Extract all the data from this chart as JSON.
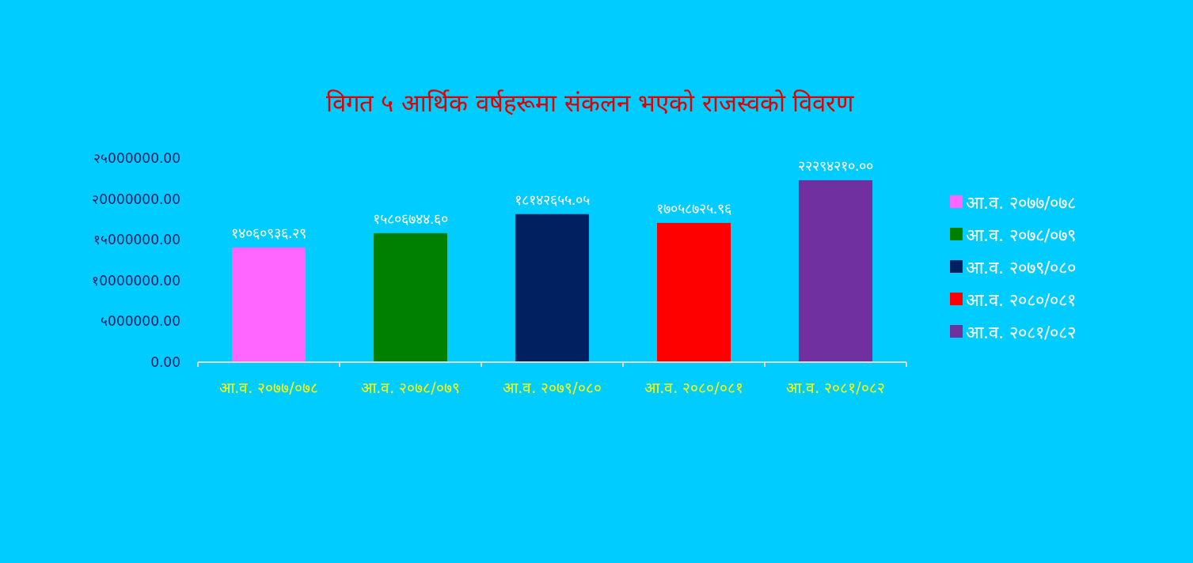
{
  "chart_data": {
    "type": "bar",
    "title": "विगत ५  आर्थिक वर्षहरूमा संकलन भएको राजस्वको विवरण",
    "categories": [
      "आ.व. २०७७/०७८",
      "आ.व. २०७८/०७९",
      "आ.व. २०७९/०८०",
      "आ.व. २०८०/०८१",
      "आ.व. २०८१/०८२"
    ],
    "stacked": true,
    "series": [
      {
        "name": "आ.व. २०७७/०७८",
        "color": "#ff66ff",
        "values": [
          14060936.29,
          null,
          null,
          null,
          null
        ],
        "value_labels": [
          "१४०६०९३६.२९",
          null,
          null,
          null,
          null
        ]
      },
      {
        "name": "आ.व. २०७८/०७९",
        "color": "#008000",
        "values": [
          null,
          15806744.6,
          null,
          null,
          null
        ],
        "value_labels": [
          null,
          "१५८०६७४४.६०",
          null,
          null,
          null
        ]
      },
      {
        "name": "आ.व. २०७९/०८०",
        "color": "#002060",
        "values": [
          null,
          null,
          18142655.05,
          null,
          null
        ],
        "value_labels": [
          null,
          null,
          "१८१४२६५५.०५",
          null,
          null
        ]
      },
      {
        "name": "आ.व. २०८०/०८१",
        "color": "#ff0000",
        "values": [
          null,
          null,
          null,
          17058725.96,
          null
        ],
        "value_labels": [
          null,
          null,
          null,
          "१७०५८७२५.९६",
          null
        ]
      },
      {
        "name": "आ.व. २०८१/०८२",
        "color": "#7030a0",
        "values": [
          null,
          null,
          null,
          null,
          22294210.0
        ],
        "value_labels": [
          null,
          null,
          null,
          null,
          "२२२९४२१०.००"
        ]
      }
    ],
    "ylim": [
      0,
      25000000
    ],
    "yticks": [
      {
        "value": 0,
        "label": "0.00"
      },
      {
        "value": 5000000,
        "label": "५000000.00"
      },
      {
        "value": 10000000,
        "label": "१0000000.00"
      },
      {
        "value": 15000000,
        "label": "१५000000.00"
      },
      {
        "value": 20000000,
        "label": "२0000000.00"
      },
      {
        "value": 25000000,
        "label": "२५000000.00"
      }
    ],
    "legend": "right"
  }
}
